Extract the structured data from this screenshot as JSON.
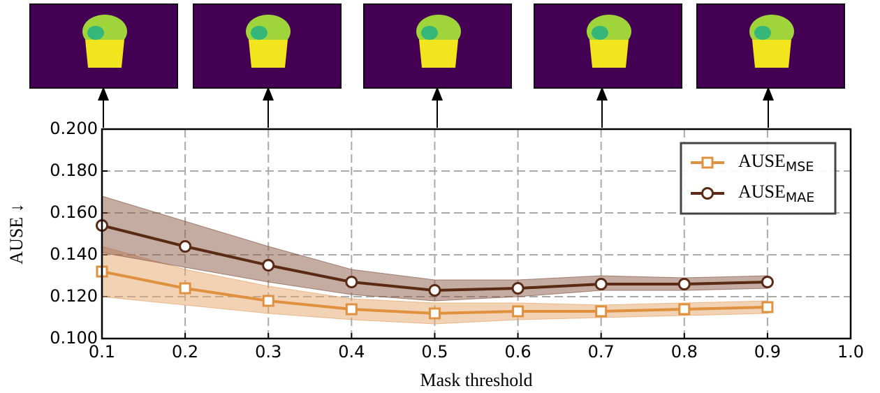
{
  "chart_data": {
    "type": "line",
    "xlabel": "Mask threshold",
    "ylabel": "AUSE ↓",
    "x": [
      0.1,
      0.2,
      0.3,
      0.4,
      0.5,
      0.6,
      0.7,
      0.8,
      0.9
    ],
    "series": [
      {
        "name": "AUSE",
        "name_sub": "MSE",
        "color": "#e0913f",
        "band_color": "#e6a56b",
        "marker": "square",
        "values": [
          0.132,
          0.124,
          0.118,
          0.114,
          0.112,
          0.113,
          0.113,
          0.114,
          0.115
        ],
        "lower": [
          0.12,
          0.116,
          0.112,
          0.109,
          0.107,
          0.109,
          0.11,
          0.111,
          0.112
        ],
        "upper": [
          0.144,
          0.133,
          0.125,
          0.119,
          0.117,
          0.117,
          0.116,
          0.117,
          0.118
        ]
      },
      {
        "name": "AUSE",
        "name_sub": "MAE",
        "color": "#5b2a14",
        "band_color": "#8a5a48",
        "marker": "circle",
        "values": [
          0.154,
          0.144,
          0.135,
          0.127,
          0.123,
          0.124,
          0.126,
          0.126,
          0.127
        ],
        "lower": [
          0.141,
          0.134,
          0.127,
          0.121,
          0.118,
          0.12,
          0.123,
          0.123,
          0.124
        ],
        "upper": [
          0.168,
          0.156,
          0.144,
          0.133,
          0.128,
          0.128,
          0.13,
          0.129,
          0.13
        ]
      }
    ],
    "xlim": [
      0.1,
      1.0
    ],
    "xticks": [
      0.1,
      0.2,
      0.3,
      0.4,
      0.5,
      0.6,
      0.7,
      0.8,
      0.9,
      {
        "value": 1.0,
        "label": "1.0"
      }
    ],
    "ylim": [
      0.1,
      0.2
    ],
    "yticks": [
      {
        "value": 0.1,
        "label": "0.100"
      },
      {
        "value": 0.12,
        "label": "0.120"
      },
      {
        "value": 0.14,
        "label": "0.140"
      },
      {
        "value": 0.16,
        "label": "0.160"
      },
      {
        "value": 0.18,
        "label": "0.180"
      },
      {
        "value": 0.2,
        "label": "0.200"
      }
    ],
    "grid": true,
    "legend": "upper right"
  }
}
